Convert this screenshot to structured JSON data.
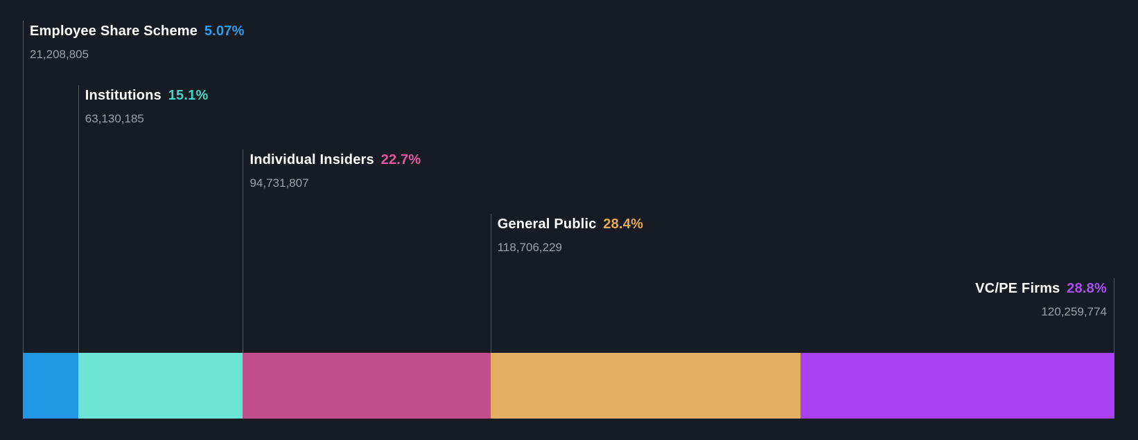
{
  "chart_data": {
    "type": "bar",
    "subtype": "stacked-proportional-horizontal",
    "title": "",
    "legend_position": "none",
    "grid": false,
    "background": "#161b24",
    "categories": [
      "Employee Share Scheme",
      "Institutions",
      "Individual Insiders",
      "General Public",
      "VC/PE Firms"
    ],
    "values": [
      5.07,
      15.1,
      22.7,
      28.4,
      28.8
    ],
    "segments": [
      {
        "name": "Employee Share Scheme",
        "percent": 5.07,
        "percent_label": "5.07%",
        "shares": "21,208,805",
        "color": "#2196e3",
        "text_color": "#2d9ceb"
      },
      {
        "name": "Institutions",
        "percent": 15.1,
        "percent_label": "15.1%",
        "shares": "63,130,185",
        "color": "#6ce5d4",
        "text_color": "#41d6c3"
      },
      {
        "name": "Individual Insiders",
        "percent": 22.7,
        "percent_label": "22.7%",
        "shares": "94,731,807",
        "color": "#c14f8c",
        "text_color": "#e0589f"
      },
      {
        "name": "General Public",
        "percent": 28.4,
        "percent_label": "28.4%",
        "shares": "118,706,229",
        "color": "#e5af63",
        "text_color": "#e8a94f"
      },
      {
        "name": "VC/PE Firms",
        "percent": 28.8,
        "percent_label": "28.8%",
        "shares": "120,259,774",
        "color": "#a640f0",
        "text_color": "#ab4ff5"
      }
    ]
  }
}
